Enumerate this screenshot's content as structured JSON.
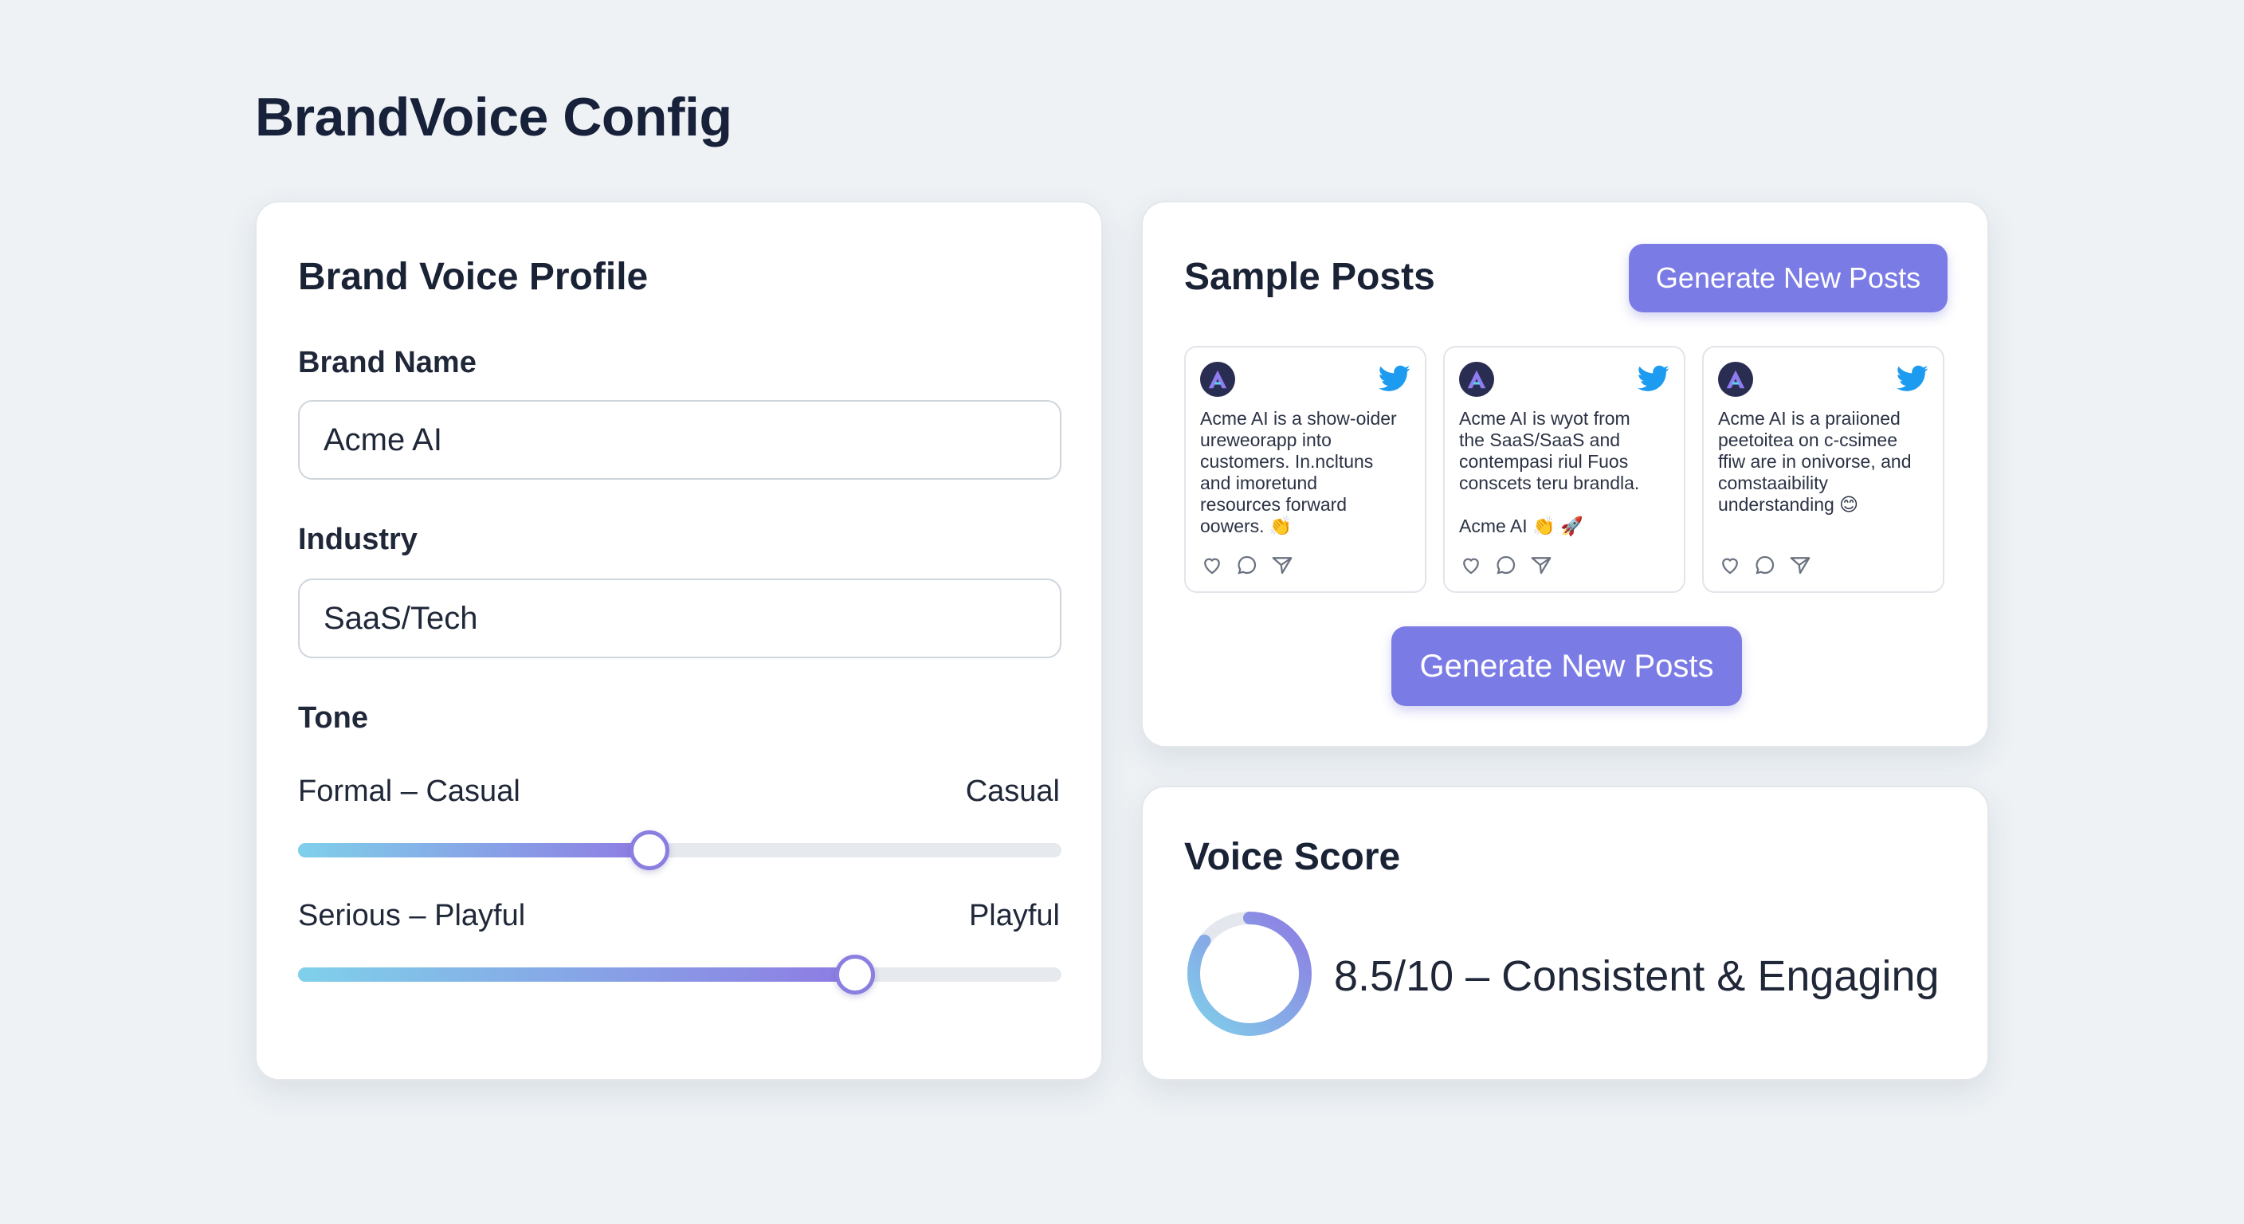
{
  "page": {
    "title": "BrandVoice Config"
  },
  "profile": {
    "title": "Brand Voice Profile",
    "brand_name_label": "Brand Name",
    "brand_name_value": "Acme AI",
    "industry_label": "Industry",
    "industry_value": "SaaS/Tech",
    "tone_label": "Tone",
    "sliders": [
      {
        "label": "Formal – Casual",
        "value_label": "Casual",
        "level": 0.46
      },
      {
        "label": "Serious – Playful",
        "value_label": "Playful",
        "level": 0.73
      }
    ]
  },
  "posts": {
    "title": "Sample Posts",
    "generate_label": "Generate New Posts",
    "items": [
      {
        "avatar": "A",
        "text": "Acme AI is a show-oider\nureweorapp into\ncustomers. In.ncltuns\nand imoretund\nresources forward\noowers. 👏"
      },
      {
        "avatar": "A",
        "text": "Acme AI is wyot from\nthe SaaS/SaaS and\ncontempasi riul Fuos\nconscets teru brandla.\n\nAcme AI 👏 🚀"
      },
      {
        "avatar": "A",
        "text": "Acme AI is a praiioned\npeetoitea on c-csimee\nffiw are in onivorse, and\ncomstaaibility\nunderstanding 😊"
      }
    ]
  },
  "score": {
    "title": "Voice Score",
    "text": "8.5/10 – Consistent & Engaging",
    "value": 8.5,
    "max": 10
  },
  "colors": {
    "accent": "#7b7be6",
    "twitter": "#1d9bf0",
    "slider_start": "#7fd0ea",
    "slider_end": "#8e7be3"
  }
}
